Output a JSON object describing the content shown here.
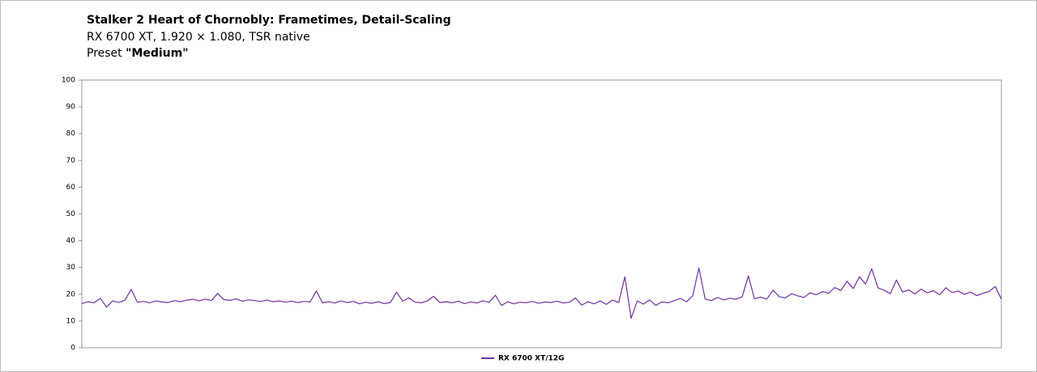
{
  "chart_data": {
    "type": "line",
    "title": "Stalker 2 Heart of Chornobly: Frametimes, Detail-Scaling",
    "subtitle": [
      "RX 6700 XT, 1.920 × 1.080, TSR native",
      "Preset"
    ],
    "preset": "\"Medium\"",
    "ylim": [
      0,
      100
    ],
    "yticks": [
      0,
      10,
      20,
      30,
      40,
      50,
      60,
      70,
      80,
      90,
      100
    ],
    "legend": "bottom",
    "series": [
      {
        "name": "RX 6700 XT/12G",
        "color": "#7030a0",
        "values": [
          16.5,
          17.2,
          16.8,
          18.5,
          15.2,
          17.5,
          16.9,
          17.8,
          21.8,
          17.0,
          17.3,
          16.8,
          17.5,
          17.1,
          16.9,
          17.6,
          17.2,
          17.8,
          18.1,
          17.5,
          18.2,
          17.6,
          20.3,
          18.0,
          17.7,
          18.3,
          17.4,
          17.9,
          17.6,
          17.3,
          17.8,
          17.2,
          17.5,
          17.0,
          17.4,
          16.9,
          17.3,
          17.1,
          21.2,
          16.8,
          17.2,
          16.7,
          17.5,
          16.9,
          17.3,
          16.4,
          17.0,
          16.6,
          17.2,
          16.5,
          16.9,
          20.8,
          17.4,
          18.6,
          17.0,
          16.8,
          17.5,
          19.2,
          16.9,
          17.2,
          16.8,
          17.4,
          16.5,
          17.1,
          16.7,
          17.5,
          17.0,
          19.6,
          15.8,
          17.2,
          16.4,
          17.0,
          16.8,
          17.3,
          16.6,
          17.1,
          16.9,
          17.4,
          16.7,
          17.0,
          18.6,
          15.9,
          17.2,
          16.4,
          17.5,
          16.2,
          17.8,
          16.9,
          26.5,
          11.0,
          17.5,
          16.3,
          17.9,
          15.8,
          17.1,
          16.8,
          17.6,
          18.4,
          17.2,
          19.5,
          29.8,
          18.2,
          17.6,
          18.8,
          17.9,
          18.5,
          18.1,
          19.0,
          26.8,
          18.3,
          18.9,
          18.2,
          21.5,
          19.1,
          18.6,
          20.2,
          19.4,
          18.8,
          20.5,
          19.8,
          21.0,
          20.3,
          22.5,
          21.4,
          24.8,
          22.1,
          26.5,
          23.8,
          29.5,
          22.4,
          21.5,
          20.2,
          25.3,
          20.8,
          21.6,
          20.1,
          21.9,
          20.5,
          21.3,
          19.8,
          22.4,
          20.6,
          21.2,
          19.9,
          20.8,
          19.5,
          20.3,
          21.0,
          22.9,
          18.2
        ]
      }
    ]
  }
}
